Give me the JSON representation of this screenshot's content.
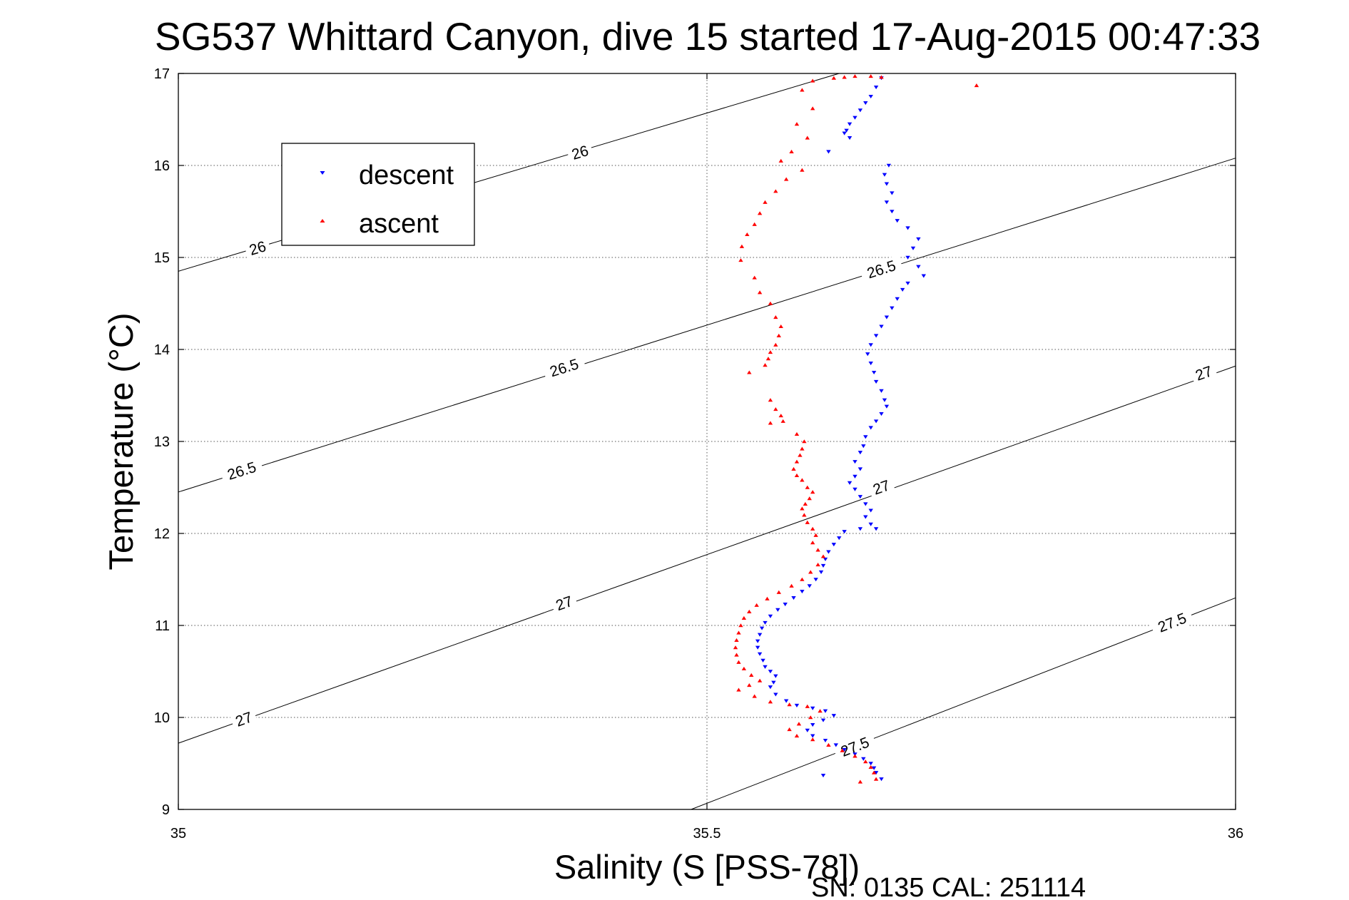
{
  "chart_data": {
    "type": "scatter",
    "title": "SG537 Whittard Canyon, dive 15 started 17-Aug-2015 00:47:33",
    "xlabel": "Salinity (S [PSS-78])",
    "ylabel": "Temperature (°C)",
    "xlim": [
      35,
      36
    ],
    "ylim": [
      9,
      17
    ],
    "x_ticks": [
      35,
      35.5,
      36
    ],
    "x_tick_labels": [
      "35",
      "35.5",
      "36"
    ],
    "y_ticks": [
      9,
      10,
      11,
      12,
      13,
      14,
      15,
      16,
      17
    ],
    "y_tick_labels": [
      "9",
      "10",
      "11",
      "12",
      "13",
      "14",
      "15",
      "16",
      "17"
    ],
    "grid": true,
    "legend_position": "top-left",
    "series": [
      {
        "name": "descent",
        "color": "#0000ff",
        "marker": "triangle-down",
        "points": [
          [
            35.665,
            16.95
          ],
          [
            35.66,
            16.85
          ],
          [
            35.655,
            16.75
          ],
          [
            35.65,
            16.68
          ],
          [
            35.645,
            16.6
          ],
          [
            35.64,
            16.52
          ],
          [
            35.635,
            16.45
          ],
          [
            35.632,
            16.38
          ],
          [
            35.635,
            16.3
          ],
          [
            35.63,
            16.35
          ],
          [
            35.615,
            16.15
          ],
          [
            35.672,
            16.0
          ],
          [
            35.668,
            15.9
          ],
          [
            35.67,
            15.8
          ],
          [
            35.675,
            15.7
          ],
          [
            35.67,
            15.6
          ],
          [
            35.675,
            15.5
          ],
          [
            35.68,
            15.4
          ],
          [
            35.69,
            15.32
          ],
          [
            35.7,
            15.2
          ],
          [
            35.695,
            15.1
          ],
          [
            35.69,
            15.0
          ],
          [
            35.7,
            14.9
          ],
          [
            35.705,
            14.8
          ],
          [
            35.69,
            14.72
          ],
          [
            35.685,
            14.65
          ],
          [
            35.68,
            14.55
          ],
          [
            35.675,
            14.45
          ],
          [
            35.67,
            14.35
          ],
          [
            35.665,
            14.25
          ],
          [
            35.66,
            14.15
          ],
          [
            35.655,
            14.05
          ],
          [
            35.652,
            13.95
          ],
          [
            35.655,
            13.85
          ],
          [
            35.658,
            13.75
          ],
          [
            35.66,
            13.65
          ],
          [
            35.665,
            13.55
          ],
          [
            35.668,
            13.45
          ],
          [
            35.67,
            13.38
          ],
          [
            35.665,
            13.3
          ],
          [
            35.66,
            13.22
          ],
          [
            35.655,
            13.15
          ],
          [
            35.65,
            13.05
          ],
          [
            35.648,
            12.95
          ],
          [
            35.645,
            12.88
          ],
          [
            35.64,
            12.78
          ],
          [
            35.645,
            12.7
          ],
          [
            35.64,
            12.62
          ],
          [
            35.635,
            12.55
          ],
          [
            35.64,
            12.48
          ],
          [
            35.645,
            12.4
          ],
          [
            35.65,
            12.32
          ],
          [
            35.655,
            12.25
          ],
          [
            35.65,
            12.18
          ],
          [
            35.655,
            12.1
          ],
          [
            35.66,
            12.05
          ],
          [
            35.645,
            12.05
          ],
          [
            35.63,
            12.02
          ],
          [
            35.625,
            11.95
          ],
          [
            35.62,
            11.88
          ],
          [
            35.615,
            11.8
          ],
          [
            35.612,
            11.72
          ],
          [
            35.61,
            11.65
          ],
          [
            35.608,
            11.58
          ],
          [
            35.603,
            11.5
          ],
          [
            35.597,
            11.43
          ],
          [
            35.59,
            11.37
          ],
          [
            35.582,
            11.3
          ],
          [
            35.574,
            11.23
          ],
          [
            35.567,
            11.17
          ],
          [
            35.56,
            11.1
          ],
          [
            35.555,
            11.03
          ],
          [
            35.552,
            10.97
          ],
          [
            35.55,
            10.9
          ],
          [
            35.548,
            10.83
          ],
          [
            35.548,
            10.76
          ],
          [
            35.55,
            10.69
          ],
          [
            35.553,
            10.62
          ],
          [
            35.555,
            10.55
          ],
          [
            35.56,
            10.5
          ],
          [
            35.565,
            10.45
          ],
          [
            35.563,
            10.38
          ],
          [
            35.56,
            10.33
          ],
          [
            35.565,
            10.25
          ],
          [
            35.575,
            10.18
          ],
          [
            35.585,
            10.13
          ],
          [
            35.6,
            10.1
          ],
          [
            35.612,
            10.07
          ],
          [
            35.62,
            10.02
          ],
          [
            35.61,
            9.97
          ],
          [
            35.6,
            9.92
          ],
          [
            35.595,
            9.86
          ],
          [
            35.6,
            9.8
          ],
          [
            35.612,
            9.75
          ],
          [
            35.622,
            9.7
          ],
          [
            35.63,
            9.65
          ],
          [
            35.64,
            9.6
          ],
          [
            35.648,
            9.55
          ],
          [
            35.655,
            9.5
          ],
          [
            35.658,
            9.45
          ],
          [
            35.66,
            9.4
          ],
          [
            35.665,
            9.33
          ],
          [
            35.61,
            9.37
          ]
        ]
      },
      {
        "name": "ascent",
        "color": "#ff0000",
        "marker": "triangle-up",
        "points": [
          [
            35.63,
            16.96
          ],
          [
            35.64,
            16.97
          ],
          [
            35.655,
            16.97
          ],
          [
            35.665,
            16.96
          ],
          [
            35.62,
            16.95
          ],
          [
            35.6,
            16.92
          ],
          [
            35.755,
            16.87
          ],
          [
            35.59,
            16.82
          ],
          [
            35.6,
            16.62
          ],
          [
            35.585,
            16.45
          ],
          [
            35.595,
            16.3
          ],
          [
            35.58,
            16.15
          ],
          [
            35.57,
            16.05
          ],
          [
            35.59,
            15.95
          ],
          [
            35.575,
            15.85
          ],
          [
            35.565,
            15.72
          ],
          [
            35.555,
            15.6
          ],
          [
            35.55,
            15.48
          ],
          [
            35.545,
            15.36
          ],
          [
            35.538,
            15.25
          ],
          [
            35.533,
            15.12
          ],
          [
            35.532,
            14.97
          ],
          [
            35.545,
            14.78
          ],
          [
            35.55,
            14.62
          ],
          [
            35.56,
            14.5
          ],
          [
            35.565,
            14.35
          ],
          [
            35.57,
            14.25
          ],
          [
            35.568,
            14.15
          ],
          [
            35.565,
            14.05
          ],
          [
            35.56,
            13.97
          ],
          [
            35.558,
            13.9
          ],
          [
            35.555,
            13.83
          ],
          [
            35.54,
            13.75
          ],
          [
            35.56,
            13.45
          ],
          [
            35.565,
            13.35
          ],
          [
            35.57,
            13.28
          ],
          [
            35.56,
            13.2
          ],
          [
            35.572,
            13.22
          ],
          [
            35.585,
            13.08
          ],
          [
            35.592,
            13.0
          ],
          [
            35.59,
            12.92
          ],
          [
            35.588,
            12.85
          ],
          [
            35.585,
            12.78
          ],
          [
            35.582,
            12.7
          ],
          [
            35.585,
            12.63
          ],
          [
            35.59,
            12.58
          ],
          [
            35.595,
            12.5
          ],
          [
            35.6,
            12.45
          ],
          [
            35.597,
            12.38
          ],
          [
            35.593,
            12.32
          ],
          [
            35.59,
            12.27
          ],
          [
            35.592,
            12.2
          ],
          [
            35.595,
            12.12
          ],
          [
            35.6,
            12.05
          ],
          [
            35.603,
            11.98
          ],
          [
            35.6,
            11.9
          ],
          [
            35.605,
            11.82
          ],
          [
            35.61,
            11.75
          ],
          [
            35.605,
            11.66
          ],
          [
            35.598,
            11.58
          ],
          [
            35.59,
            11.5
          ],
          [
            35.58,
            11.43
          ],
          [
            35.568,
            11.36
          ],
          [
            35.557,
            11.29
          ],
          [
            35.547,
            11.22
          ],
          [
            35.54,
            11.15
          ],
          [
            35.535,
            11.08
          ],
          [
            35.532,
            11.0
          ],
          [
            35.53,
            10.92
          ],
          [
            35.528,
            10.84
          ],
          [
            35.527,
            10.76
          ],
          [
            35.528,
            10.68
          ],
          [
            35.53,
            10.6
          ],
          [
            35.535,
            10.53
          ],
          [
            35.542,
            10.46
          ],
          [
            35.55,
            10.4
          ],
          [
            35.54,
            10.35
          ],
          [
            35.53,
            10.3
          ],
          [
            35.545,
            10.23
          ],
          [
            35.56,
            10.17
          ],
          [
            35.578,
            10.14
          ],
          [
            35.595,
            10.12
          ],
          [
            35.607,
            10.07
          ],
          [
            35.598,
            10.0
          ],
          [
            35.587,
            9.93
          ],
          [
            35.578,
            9.87
          ],
          [
            35.585,
            9.8
          ],
          [
            35.6,
            9.76
          ],
          [
            35.615,
            9.7
          ],
          [
            35.628,
            9.64
          ],
          [
            35.64,
            9.58
          ],
          [
            35.65,
            9.52
          ],
          [
            35.655,
            9.46
          ],
          [
            35.658,
            9.4
          ],
          [
            35.66,
            9.33
          ],
          [
            35.645,
            9.3
          ]
        ]
      }
    ],
    "isopycnals": [
      {
        "label": "26",
        "points": [
          [
            35,
            14.85
          ],
          [
            35.625,
            17.0
          ]
        ],
        "label_positions": [
          [
            35.075,
            15.1
          ],
          [
            35.38,
            16.14
          ]
        ]
      },
      {
        "label": "26.5",
        "points": [
          [
            35,
            12.45
          ],
          [
            36,
            16.08
          ]
        ],
        "label_positions": [
          [
            35.06,
            12.68
          ],
          [
            35.365,
            13.8
          ],
          [
            35.665,
            14.87
          ]
        ]
      },
      {
        "label": "27",
        "points": [
          [
            35,
            9.72
          ],
          [
            36,
            13.82
          ]
        ],
        "label_positions": [
          [
            35.062,
            9.98
          ],
          [
            35.365,
            11.24
          ],
          [
            35.665,
            12.5
          ],
          [
            35.97,
            13.74
          ]
        ]
      },
      {
        "label": "27.5",
        "points": [
          [
            35.485,
            9.0
          ],
          [
            36,
            11.3
          ]
        ],
        "label_positions": [
          [
            35.64,
            9.68
          ],
          [
            35.94,
            11.03
          ]
        ]
      }
    ]
  },
  "footer": {
    "serial": "SN: 0135  CAL: 251114"
  }
}
